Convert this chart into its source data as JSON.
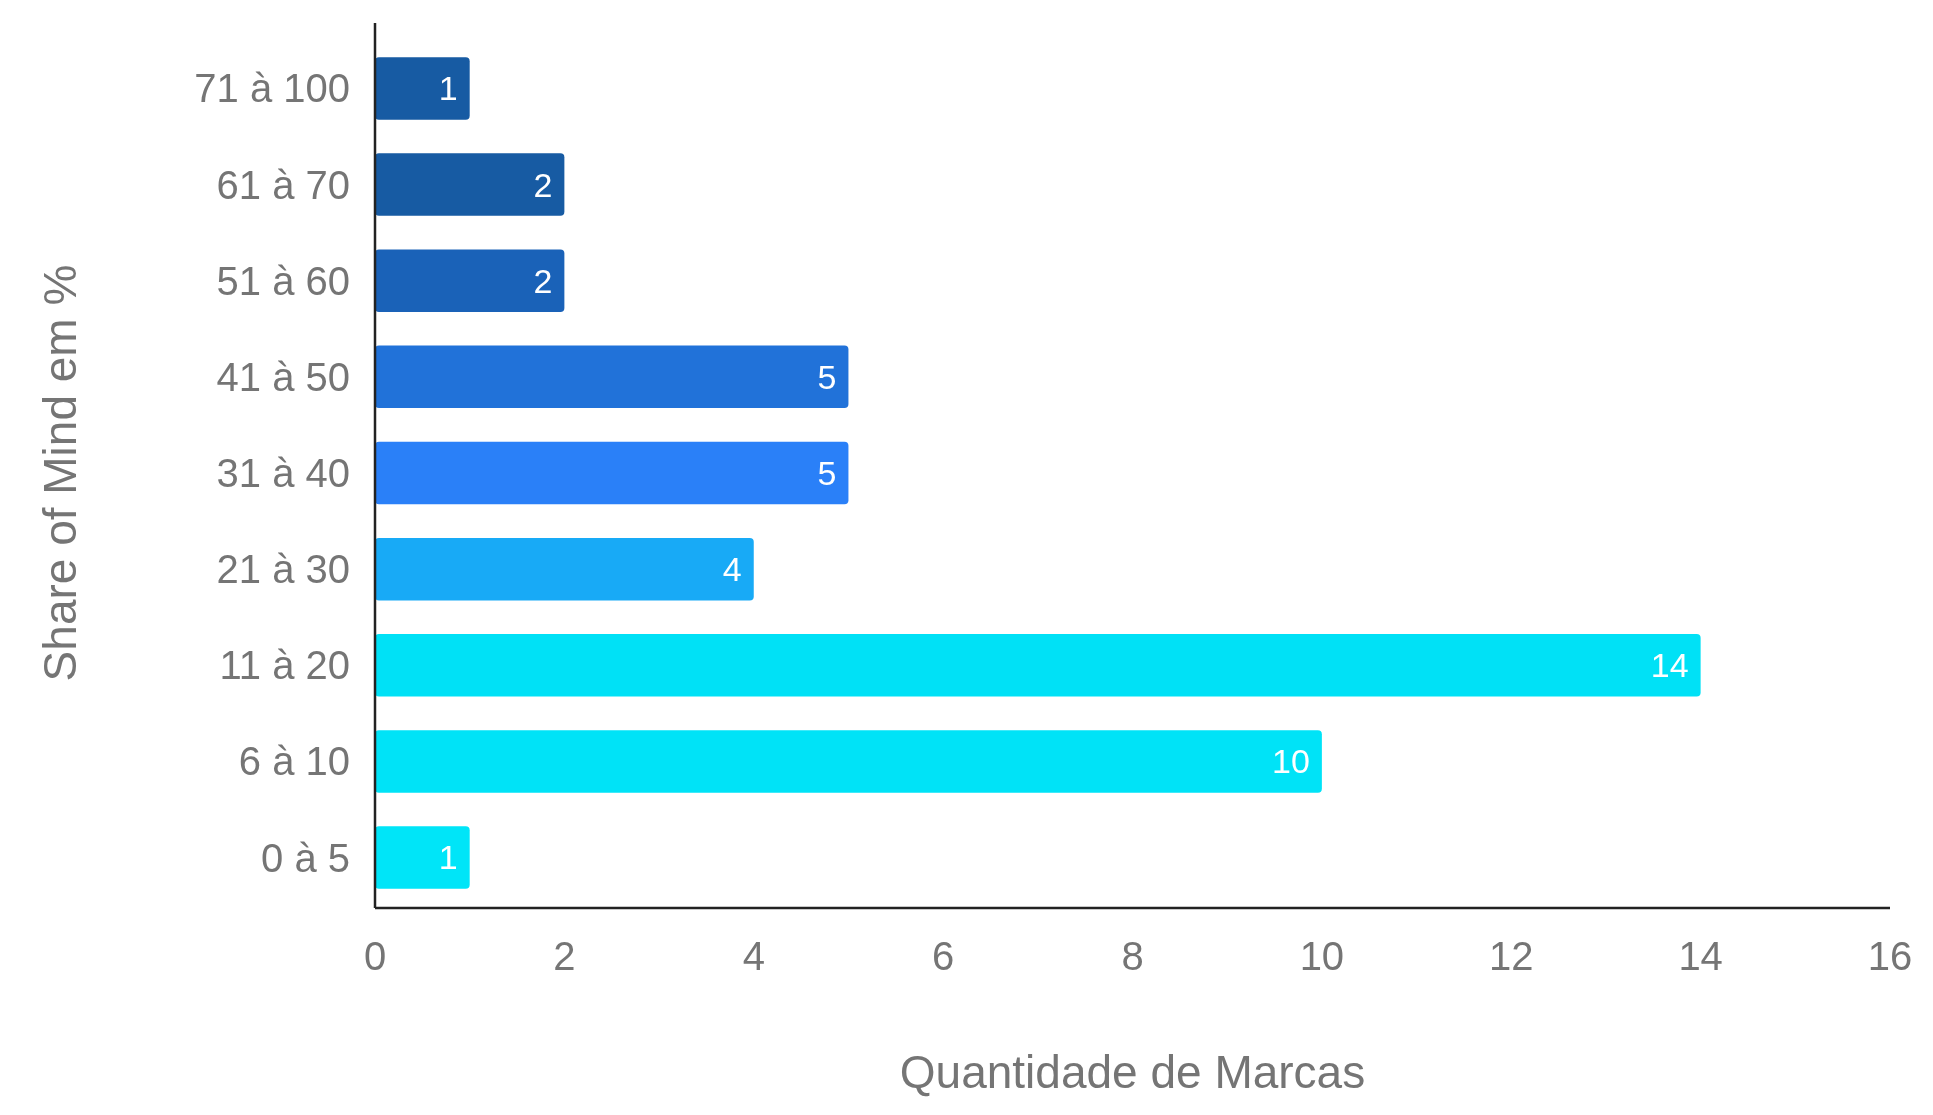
{
  "chart_data": {
    "type": "bar",
    "orientation": "horizontal",
    "xlabel": "Quantidade de Marcas",
    "ylabel": "Share of Mind em %",
    "categories": [
      "71 à 100",
      "61 à 70",
      "51 à 60",
      "41 à 50",
      "31 à 40",
      "21 à 30",
      "11 à 20",
      "6 à 10",
      "0 à 5"
    ],
    "values": [
      1,
      2,
      2,
      5,
      5,
      4,
      14,
      10,
      1
    ],
    "colors": [
      "#175ba3",
      "#175ba3",
      "#1a62b8",
      "#2172d9",
      "#2a80f8",
      "#18aaf6",
      "#00e1f6",
      "#00e3f7",
      "#00e5f8"
    ],
    "xlim": [
      0,
      16
    ],
    "xticks": [
      0,
      2,
      4,
      6,
      8,
      10,
      12,
      14,
      16
    ],
    "data_labels": true
  }
}
